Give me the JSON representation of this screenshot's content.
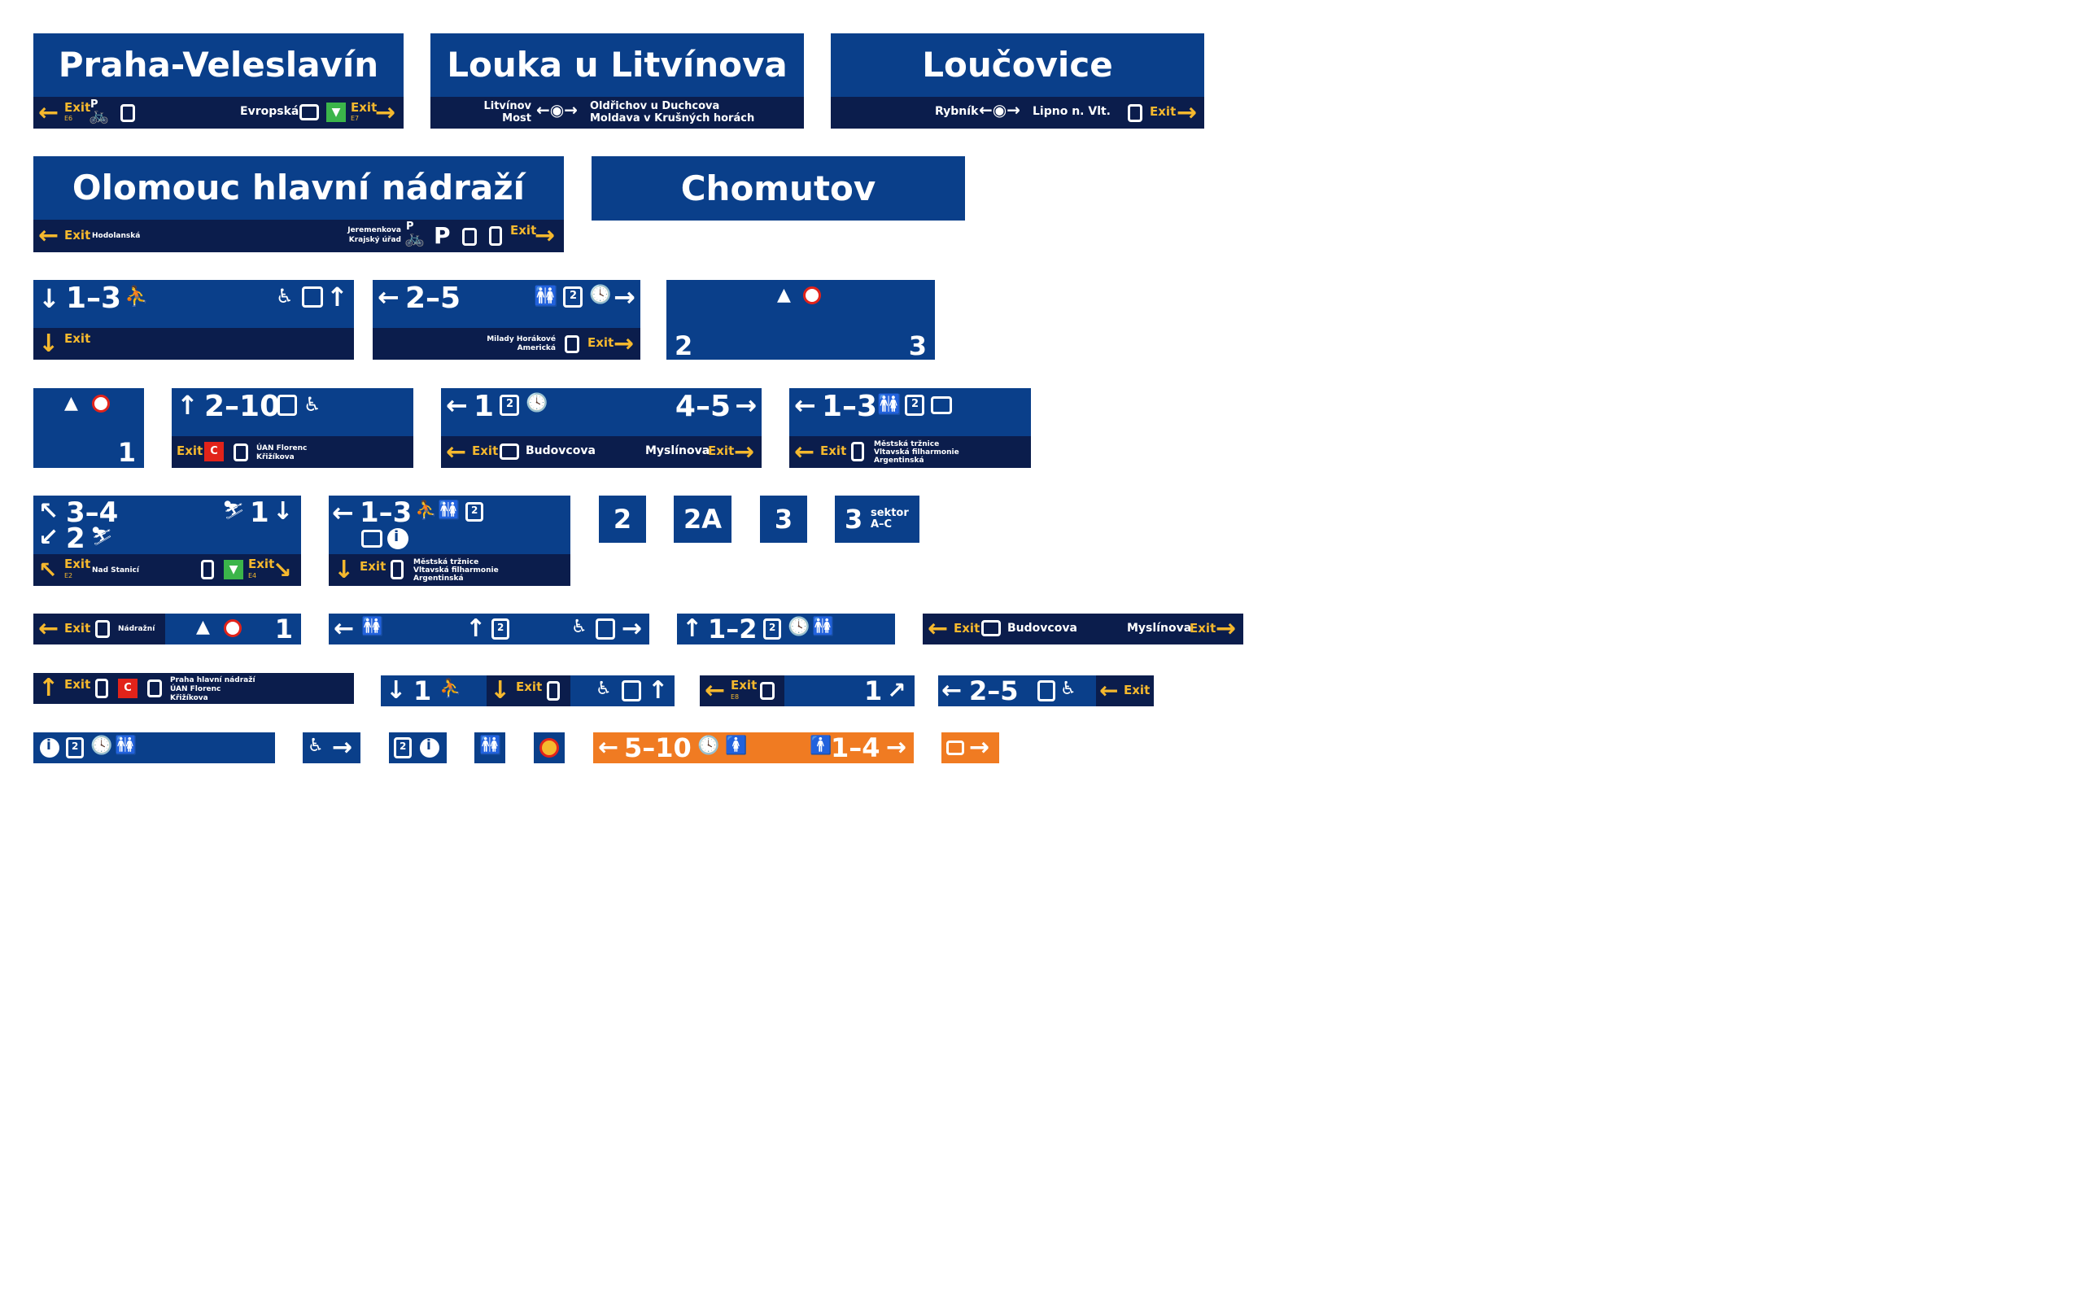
{
  "colors": {
    "navy": "#0a3f8a",
    "dark_navy": "#0b1d4c",
    "exit_yellow": "#f5b82e",
    "orange": "#f07b22",
    "metro_b": "#3bb54a",
    "metro_c": "#e2231a"
  },
  "s1": {
    "title": "Praha-Veleslavín",
    "exit_left": "Exit",
    "exit_left_code": "E6",
    "parking": "P",
    "street_right": "Evropská",
    "exit_right": "Exit",
    "exit_right_code": "E7"
  },
  "s2": {
    "title": "Louka u Litvínova",
    "left_1": "Litvínov",
    "left_2": "Most",
    "right_1": "Oldřichov u Duchcova",
    "right_2": "Moldava v Krušných horách"
  },
  "s3": {
    "title": "Loučovice",
    "left": "Rybník",
    "right": "Lipno n. Vlt.",
    "exit": "Exit"
  },
  "s4": {
    "title": "Olomouc hlavní nádraží",
    "exit_left": "Exit",
    "street_left": "Hodolanská",
    "street_r1": "Jeremenkova",
    "street_r2": "Krajský úřad",
    "parking_bike": "P",
    "parking": "P",
    "exit_right": "Exit"
  },
  "s5": {
    "title": "Chomutov"
  },
  "s6": {
    "tracks": "1–3",
    "exit": "Exit"
  },
  "s7": {
    "tracks": "2–5",
    "street_1": "Milady Horákové",
    "street_2": "Americká",
    "exit": "Exit",
    "wait_digit": "2"
  },
  "s8": {
    "left": "2",
    "right": "3"
  },
  "s9": {
    "num": "1"
  },
  "s10": {
    "tracks": "2–10",
    "exit": "Exit",
    "metro_letter": "C",
    "dest_1": "ÚAN Florenc",
    "dest_2": "Křižíkova"
  },
  "s11": {
    "left": "1",
    "right": "4–5",
    "exit_left": "Exit",
    "street_left": "Budovcova",
    "street_right": "Myslínova",
    "exit_right": "Exit",
    "wait_digit": "2"
  },
  "s12": {
    "tracks": "1–3",
    "exit": "Exit",
    "dest_1": "Městská tržnice",
    "dest_2": "Vltavská filharmonie",
    "dest_3": "Argentinská",
    "wait_digit": "2"
  },
  "s13": {
    "top_left": "3–4",
    "top_right": "1",
    "bottom_left": "2",
    "exit_left": "Exit",
    "exit_left_code": "E2",
    "street": "Nad Stanicí",
    "metro_letter": "B",
    "exit_right": "Exit",
    "exit_right_code": "E4"
  },
  "s14": {
    "tracks": "1–3",
    "exit": "Exit",
    "dest_1": "Městská tržnice",
    "dest_2": "Vltavská filharmonie",
    "dest_3": "Argentinská",
    "info": "i",
    "wait_digit": "2"
  },
  "s15": {
    "label": "2"
  },
  "s16": {
    "label": "2A"
  },
  "s17": {
    "label": "3"
  },
  "s18": {
    "label": "3",
    "sub_1": "sektor",
    "sub_2": "A–C"
  },
  "s19": {
    "exit": "Exit",
    "street": "Nádražní",
    "num": "1"
  },
  "s20": {
    "wait_digit": "2"
  },
  "s21": {
    "tracks": "1–2",
    "wait_digit": "2"
  },
  "s22": {
    "exit": "Exit",
    "street_left": "Budovcova",
    "street_right": "Myslínova",
    "exit_right": "Exit"
  },
  "s23": {
    "exit": "Exit",
    "metro_letter": "C",
    "dest_1": "Praha hlavní nádraží",
    "dest_2": "ÚAN Florenc",
    "dest_3": "Křižíkova"
  },
  "s24": {
    "num": "1",
    "exit": "Exit"
  },
  "s25": {
    "exit": "Exit",
    "code": "E8",
    "num": "1"
  },
  "s26": {
    "tracks": "2–5",
    "exit": "Exit"
  },
  "s27": {
    "info": "i",
    "wait_digit": "2"
  },
  "s29": {
    "info": "i",
    "wait_digit": "2"
  },
  "s32": {
    "left": "5–10",
    "right": "1–4"
  }
}
